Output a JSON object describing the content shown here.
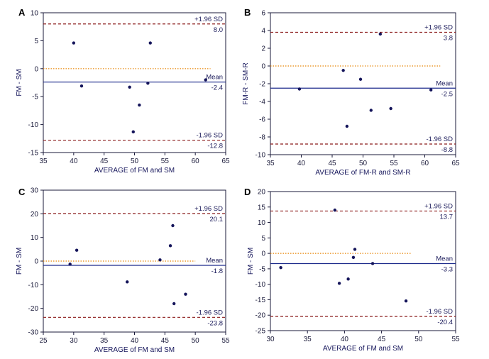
{
  "figure": {
    "colors": {
      "axis": "#1a1a3a",
      "mean_line": "#1c2a8c",
      "sd_line": "#8b1a1a",
      "zero_line": "#e8870a",
      "points": "#14145a"
    }
  },
  "chart_data": [
    {
      "panel_label": "A",
      "type": "scatter",
      "xlabel": "AVERAGE of FM and SM",
      "ylabel": "FM - SM",
      "xlim": [
        35,
        65
      ],
      "ylim": [
        -15,
        10
      ],
      "xticks": [
        35,
        40,
        45,
        50,
        55,
        60,
        65
      ],
      "yticks": [
        10,
        5,
        0,
        -5,
        -10,
        -15
      ],
      "points": [
        {
          "x": 40.0,
          "y": 4.6
        },
        {
          "x": 41.3,
          "y": -3.1
        },
        {
          "x": 49.2,
          "y": -3.3
        },
        {
          "x": 49.8,
          "y": -11.3
        },
        {
          "x": 50.8,
          "y": -6.5
        },
        {
          "x": 52.2,
          "y": -2.6
        },
        {
          "x": 52.6,
          "y": 4.6
        },
        {
          "x": 61.7,
          "y": -2.0
        }
      ],
      "upper": {
        "label": "+1.96 SD",
        "value": 8.0,
        "value_label": "8.0"
      },
      "mean": {
        "label": "Mean",
        "value": -2.4,
        "value_label": "-2.4"
      },
      "lower": {
        "label": "-1.96 SD",
        "value": -12.8,
        "value_label": "-12.8"
      },
      "zero_line_x_end": 62.5
    },
    {
      "panel_label": "B",
      "type": "scatter",
      "xlabel": "AVERAGE of FM-R and SM-R",
      "ylabel": "FM-R - SM-R",
      "xlim": [
        35,
        65
      ],
      "ylim": [
        -10,
        6
      ],
      "xticks": [
        35,
        40,
        45,
        50,
        55,
        60,
        65
      ],
      "yticks": [
        6,
        4,
        2,
        0,
        -2,
        -4,
        -6,
        -8,
        -10
      ],
      "points": [
        {
          "x": 39.7,
          "y": -2.6
        },
        {
          "x": 46.8,
          "y": -0.5
        },
        {
          "x": 47.4,
          "y": -6.8
        },
        {
          "x": 49.6,
          "y": -1.5
        },
        {
          "x": 51.3,
          "y": -5.0
        },
        {
          "x": 52.8,
          "y": 3.6
        },
        {
          "x": 54.5,
          "y": -4.8
        },
        {
          "x": 61.0,
          "y": -2.7
        }
      ],
      "upper": {
        "label": "+1.96 SD",
        "value": 3.8,
        "value_label": "3.8"
      },
      "mean": {
        "label": "Mean",
        "value": -2.5,
        "value_label": "-2.5"
      },
      "lower": {
        "label": "-1.96 SD",
        "value": -8.8,
        "value_label": "-8.8"
      },
      "zero_line_x_end": 62.5
    },
    {
      "panel_label": "C",
      "type": "scatter",
      "xlabel": "AVERAGE of FM and SM",
      "ylabel": "FM - SM",
      "xlim": [
        25,
        55
      ],
      "ylim": [
        -30,
        30
      ],
      "xticks": [
        25,
        30,
        35,
        40,
        45,
        50,
        55
      ],
      "yticks": [
        30,
        20,
        10,
        0,
        -10,
        -20,
        -30
      ],
      "points": [
        {
          "x": 29.4,
          "y": -1.3
        },
        {
          "x": 30.5,
          "y": 4.6
        },
        {
          "x": 38.8,
          "y": -8.8
        },
        {
          "x": 44.2,
          "y": 0.5
        },
        {
          "x": 45.9,
          "y": 6.5
        },
        {
          "x": 46.3,
          "y": 15.0
        },
        {
          "x": 46.5,
          "y": -18.0
        },
        {
          "x": 48.4,
          "y": -14.0
        }
      ],
      "upper": {
        "label": "+1.96 SD",
        "value": 20.1,
        "value_label": "20.1"
      },
      "mean": {
        "label": "Mean",
        "value": -1.8,
        "value_label": "-1.8"
      },
      "lower": {
        "label": "-1.96 SD",
        "value": -23.8,
        "value_label": "-23.8"
      },
      "zero_line_x_end": 50.0
    },
    {
      "panel_label": "D",
      "type": "scatter",
      "xlabel": "AVERAGE of FM and SM",
      "ylabel": "FM - SM",
      "xlim": [
        30,
        55
      ],
      "ylim": [
        -25,
        20
      ],
      "xticks": [
        30,
        35,
        40,
        45,
        50,
        55
      ],
      "yticks": [
        20,
        15,
        10,
        5,
        0,
        -5,
        -10,
        -15,
        -20,
        -25
      ],
      "points": [
        {
          "x": 31.4,
          "y": -4.6
        },
        {
          "x": 38.7,
          "y": 14.0
        },
        {
          "x": 39.3,
          "y": -9.7
        },
        {
          "x": 40.5,
          "y": -8.3
        },
        {
          "x": 41.2,
          "y": -1.3
        },
        {
          "x": 41.4,
          "y": 1.3
        },
        {
          "x": 43.8,
          "y": -3.3
        },
        {
          "x": 48.3,
          "y": -15.4
        }
      ],
      "upper": {
        "label": "+1.96 SD",
        "value": 13.7,
        "value_label": "13.7"
      },
      "mean": {
        "label": "Mean",
        "value": -3.3,
        "value_label": "-3.3"
      },
      "lower": {
        "label": "-1.96 SD",
        "value": -20.4,
        "value_label": "-20.4"
      },
      "zero_line_x_end": 49.0
    }
  ]
}
